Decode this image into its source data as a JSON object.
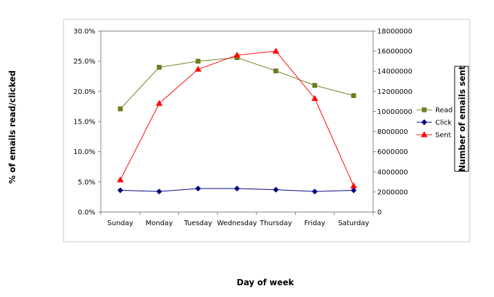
{
  "chart_data": {
    "type": "line",
    "categories": [
      "Sunday",
      "Monday",
      "Tuesday",
      "Wednesday",
      "Thursday",
      "Friday",
      "Saturday"
    ],
    "xlabel": "Day of week",
    "ylabel": "% of emails read/clicked",
    "y2label": "Number of emails sent",
    "ylim": [
      0,
      0.3
    ],
    "y2lim": [
      0,
      18000000
    ],
    "yticks": [
      "0.0%",
      "5.0%",
      "10.0%",
      "15.0%",
      "20.0%",
      "25.0%",
      "30.0%"
    ],
    "y2ticks": [
      "0",
      "2000000",
      "4000000",
      "6000000",
      "8000000",
      "10000000",
      "12000000",
      "14000000",
      "16000000",
      "18000000"
    ],
    "grid": false,
    "legend_position": "right",
    "series": [
      {
        "name": "Read",
        "axis": "left",
        "color": "#6b7f1f",
        "marker": "square",
        "values": [
          0.171,
          0.24,
          0.25,
          0.256,
          0.234,
          0.21,
          0.193
        ]
      },
      {
        "name": "Click",
        "axis": "left",
        "color": "#000080",
        "marker": "diamond",
        "values": [
          0.036,
          0.034,
          0.039,
          0.039,
          0.037,
          0.034,
          0.036
        ]
      },
      {
        "name": "Sent",
        "axis": "right",
        "color": "#ff0000",
        "marker": "triangle",
        "values": [
          3200000,
          10800000,
          14200000,
          15600000,
          16000000,
          11300000,
          2600000
        ]
      }
    ]
  }
}
